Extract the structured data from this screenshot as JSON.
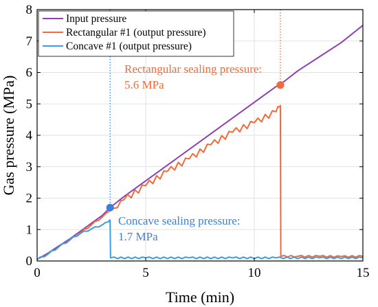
{
  "chart_data": {
    "type": "line",
    "xlabel": "Time (min)",
    "ylabel": "Gas pressure (MPa)",
    "xlim": [
      0,
      15
    ],
    "ylim": [
      0,
      8
    ],
    "xticks": [
      0,
      5,
      10,
      15
    ],
    "yticks": [
      0,
      1,
      2,
      3,
      4,
      5,
      6,
      7,
      8
    ],
    "grid": true,
    "legend_position": "top-left",
    "series": [
      {
        "name": "Input pressure",
        "color": "#8e3fb0",
        "x": [
          0,
          0.5,
          1,
          1.5,
          2,
          2.5,
          3,
          3.36,
          4,
          5,
          6,
          7,
          8,
          9,
          10,
          11,
          11.2,
          12,
          13,
          14,
          15
        ],
        "y": [
          0.05,
          0.25,
          0.48,
          0.7,
          0.95,
          1.2,
          1.45,
          1.7,
          2.05,
          2.55,
          3.05,
          3.55,
          4.05,
          4.55,
          5.05,
          5.55,
          5.62,
          6.05,
          6.5,
          6.95,
          7.5
        ]
      },
      {
        "name": "Rectangular #1 (output pressure)",
        "color": "#f06a3a",
        "x": [
          0,
          0.5,
          1,
          1.5,
          2,
          2.5,
          3,
          3.36,
          3.7,
          4,
          5,
          6,
          7,
          8,
          9,
          10,
          11,
          11.18,
          11.2,
          11.22,
          12,
          13,
          14,
          15
        ],
        "y": [
          0.05,
          0.22,
          0.45,
          0.66,
          0.9,
          1.15,
          1.4,
          1.6,
          1.7,
          1.95,
          2.4,
          2.85,
          3.25,
          3.7,
          4.1,
          4.4,
          4.75,
          4.9,
          4.95,
          0.15,
          0.15,
          0.15,
          0.14,
          0.15
        ]
      },
      {
        "name": "Concave #1 (output pressure)",
        "color": "#3a9ee0",
        "x": [
          0,
          0.5,
          1,
          1.5,
          2,
          2.5,
          3,
          3.3,
          3.36,
          3.38,
          5,
          7,
          9,
          11,
          13,
          15
        ],
        "y": [
          0.05,
          0.22,
          0.45,
          0.68,
          0.88,
          1.02,
          1.15,
          1.25,
          1.3,
          0.1,
          0.1,
          0.1,
          0.1,
          0.1,
          0.1,
          0.1
        ]
      }
    ],
    "annotations": [
      {
        "id": "rect",
        "text_line1": "Rectangular sealing pressure:",
        "text_line2": "5.6 MPa",
        "x": 11.2,
        "y": 5.6,
        "color": "#f06a3a"
      },
      {
        "id": "conc",
        "text_line1": "Concave sealing pressure:",
        "text_line2": "1.7 MPa",
        "x": 3.36,
        "y": 1.7,
        "color": "#3a7fe0"
      }
    ]
  }
}
